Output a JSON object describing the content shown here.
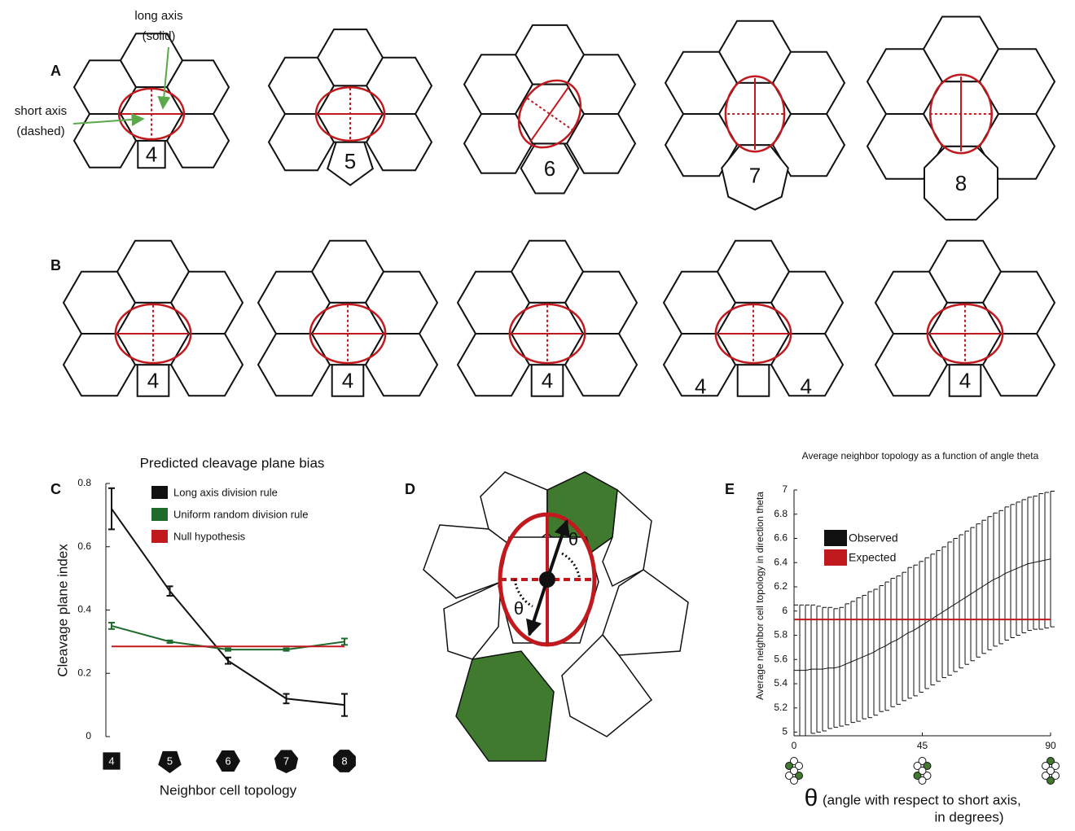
{
  "panel_a": {
    "label": "A",
    "numbers": [
      "4",
      "5",
      "6",
      "7",
      "8"
    ],
    "long_axis": [
      "long axis",
      "(solid)"
    ],
    "short_axis": [
      "short axis",
      "(dashed)"
    ]
  },
  "panel_b": {
    "label": "B",
    "rosettes": [
      {
        "numbers": [
          "4"
        ]
      },
      {
        "numbers": [
          "4"
        ]
      },
      {
        "numbers": [
          "4"
        ]
      },
      {
        "numbers": [
          "4",
          "4"
        ]
      },
      {
        "numbers": [
          "4"
        ]
      }
    ]
  },
  "panel_d": {
    "label": "D",
    "theta_labels": [
      "θ",
      "θ"
    ]
  },
  "chart_data": [
    {
      "type": "line",
      "panel": "C",
      "title": "Predicted cleavage plane bias",
      "ylabel": "Cleavage plane index",
      "xlabel": "Neighbor cell topology",
      "categories": [
        "4",
        "5",
        "6",
        "7",
        "8"
      ],
      "ylim": [
        0,
        0.8
      ],
      "yticks": [
        0,
        0.2,
        0.4,
        0.6,
        0.8
      ],
      "series": [
        {
          "name": "Long axis division rule",
          "color": "#111111",
          "values": [
            0.72,
            0.46,
            0.24,
            0.12,
            0.1
          ],
          "errors": [
            0.065,
            0.015,
            0.01,
            0.015,
            0.035
          ]
        },
        {
          "name": "Uniform random division rule",
          "color": "#1e6b2c",
          "values": [
            0.35,
            0.3,
            0.275,
            0.275,
            0.3
          ],
          "errors": [
            0.01,
            0.004,
            0.004,
            0.004,
            0.01
          ]
        },
        {
          "name": "Null hypothesis",
          "color": "#c0191e",
          "values": [
            0.285,
            0.285,
            0.285,
            0.285,
            0.285
          ]
        }
      ]
    },
    {
      "type": "line",
      "panel": "E",
      "title": "Average neighbor topology as a function of angle theta",
      "ylabel": "Average neighbor cell topology in direction theta",
      "xlabel_symbol": "θ",
      "xlabel_lines": [
        "(angle with respect to short axis,",
        "in degrees)"
      ],
      "xlim": [
        0,
        90
      ],
      "xticks": [
        0,
        45,
        90
      ],
      "ylim": [
        4.97,
        7.0
      ],
      "yticks": [
        5,
        5.2,
        5.4,
        5.6,
        5.8,
        6,
        6.2,
        6.4,
        6.6,
        6.8,
        7
      ],
      "series": [
        {
          "name": "Observed",
          "color": "#111111",
          "x": [
            0,
            2,
            4,
            6,
            8,
            10,
            12,
            14,
            16,
            18,
            20,
            22,
            24,
            26,
            28,
            30,
            32,
            34,
            36,
            38,
            40,
            42,
            44,
            46,
            48,
            50,
            52,
            54,
            56,
            58,
            60,
            62,
            64,
            66,
            68,
            70,
            72,
            74,
            76,
            78,
            80,
            82,
            84,
            86,
            88,
            90
          ],
          "values": [
            5.51,
            5.51,
            5.51,
            5.52,
            5.52,
            5.52,
            5.53,
            5.53,
            5.54,
            5.56,
            5.58,
            5.6,
            5.62,
            5.64,
            5.66,
            5.69,
            5.71,
            5.74,
            5.76,
            5.79,
            5.82,
            5.84,
            5.87,
            5.9,
            5.93,
            5.96,
            5.99,
            6.02,
            6.05,
            6.08,
            6.11,
            6.14,
            6.17,
            6.2,
            6.23,
            6.26,
            6.28,
            6.31,
            6.33,
            6.35,
            6.37,
            6.39,
            6.4,
            6.41,
            6.42,
            6.43
          ],
          "errors": [
            0.54,
            0.54,
            0.54,
            0.53,
            0.52,
            0.51,
            0.5,
            0.49,
            0.49,
            0.5,
            0.5,
            0.51,
            0.51,
            0.52,
            0.52,
            0.52,
            0.53,
            0.53,
            0.53,
            0.53,
            0.54,
            0.54,
            0.54,
            0.54,
            0.54,
            0.54,
            0.54,
            0.55,
            0.55,
            0.55,
            0.55,
            0.55,
            0.55,
            0.55,
            0.55,
            0.55,
            0.55,
            0.55,
            0.55,
            0.55,
            0.55,
            0.55,
            0.55,
            0.56,
            0.56,
            0.56
          ]
        },
        {
          "name": "Expected",
          "color": "#c0191e",
          "x": [
            0,
            90
          ],
          "values": [
            5.93,
            5.93
          ]
        }
      ]
    }
  ]
}
